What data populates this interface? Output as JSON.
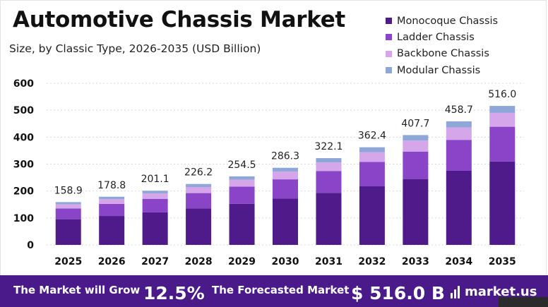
{
  "title": "Automotive Chassis Market",
  "subtitle": "Size, by Classic Type, 2026-2035 (USD Billion)",
  "colors": {
    "monocoque": "#4f1a8a",
    "ladder": "#8a44c8",
    "backbone": "#d6a6ea",
    "modular": "#8fa6d8",
    "footer_bg": "#4a1a8a"
  },
  "legend": [
    {
      "label": "Monocoque Chassis",
      "color": "#4f1a8a"
    },
    {
      "label": "Ladder Chassis",
      "color": "#8a44c8"
    },
    {
      "label": "Backbone Chassis",
      "color": "#d6a6ea"
    },
    {
      "label": "Modular Chassis",
      "color": "#8fa6d8"
    }
  ],
  "chart_data": {
    "type": "bar",
    "stacked": true,
    "categories": [
      "2025",
      "2026",
      "2027",
      "2028",
      "2029",
      "2030",
      "2031",
      "2032",
      "2033",
      "2034",
      "2035"
    ],
    "series": [
      {
        "name": "Monocoque Chassis",
        "values": [
          95.3,
          107.3,
          120.7,
          135.7,
          152.7,
          171.8,
          193.3,
          217.4,
          244.6,
          275.2,
          309.6
        ]
      },
      {
        "name": "Ladder Chassis",
        "values": [
          39.7,
          44.7,
          50.3,
          56.6,
          63.6,
          71.6,
          80.5,
          90.6,
          101.9,
          114.7,
          129.0
        ]
      },
      {
        "name": "Backbone Chassis",
        "values": [
          15.9,
          17.9,
          20.1,
          22.6,
          25.5,
          28.6,
          32.2,
          36.2,
          40.8,
          45.9,
          51.6
        ]
      },
      {
        "name": "Modular Chassis",
        "values": [
          8.0,
          8.9,
          10.0,
          11.3,
          12.7,
          14.3,
          16.1,
          18.2,
          20.4,
          22.9,
          25.8
        ]
      }
    ],
    "totals": [
      158.9,
      178.8,
      201.1,
      226.2,
      254.5,
      286.3,
      322.1,
      362.4,
      407.7,
      458.7,
      516.0
    ],
    "total_labels": [
      "158.9",
      "178.8",
      "201.1",
      "226.2",
      "254.5",
      "286.3",
      "322.1",
      "362.4",
      "407.7",
      "458.7",
      "516.0"
    ],
    "yticks": [
      0,
      100,
      200,
      300,
      400,
      500,
      600
    ],
    "ylim": [
      0,
      600
    ],
    "grid": true,
    "legend_position": "top-right"
  },
  "footer": {
    "grow_text": "The Market will Grow",
    "cagr": "12.5%",
    "forecast_text": "The Forecasted Market",
    "forecast_value": "$ 516.0 B",
    "brand": "market.us"
  }
}
